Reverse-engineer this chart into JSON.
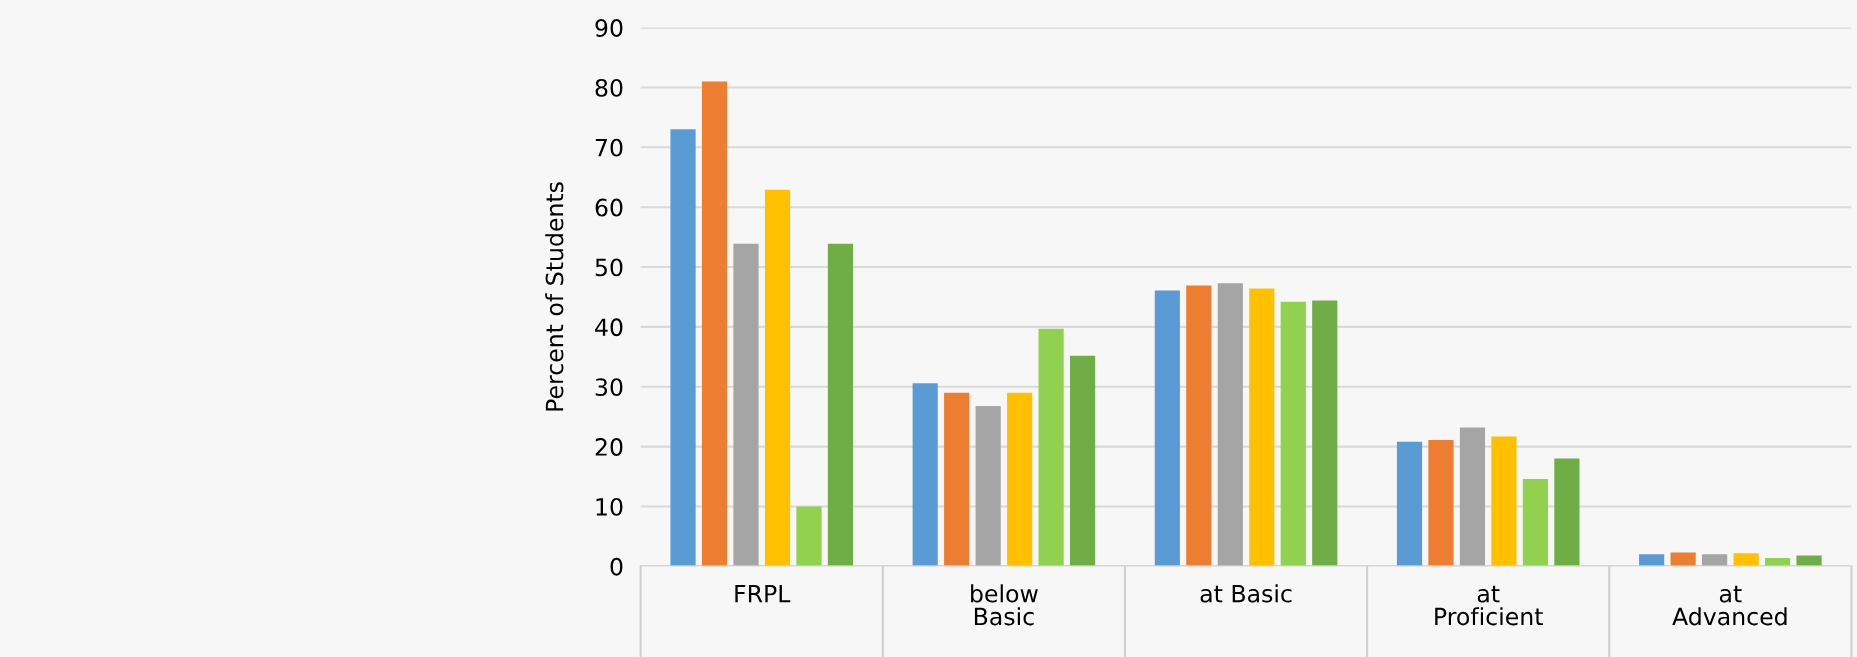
{
  "chart_data": {
    "type": "bar",
    "ylabel": "Percent of Students",
    "categories": [
      "FRPL",
      "below\nBasic",
      "at Basic",
      "at\nProficient",
      "at\nAdvanced"
    ],
    "series": [
      {
        "color": "#5b9bd5",
        "values": [
          73.0,
          30.6,
          46.1,
          20.8,
          2.0
        ]
      },
      {
        "color": "#ed7d31",
        "values": [
          81.0,
          29.0,
          46.9,
          21.1,
          2.3
        ]
      },
      {
        "color": "#a5a5a5",
        "values": [
          53.9,
          26.8,
          47.3,
          23.2,
          2.0
        ]
      },
      {
        "color": "#ffc000",
        "values": [
          62.9,
          29.0,
          46.4,
          21.7,
          2.2
        ]
      },
      {
        "color": "#92d050",
        "values": [
          10.0,
          39.7,
          44.2,
          14.6,
          1.4
        ]
      },
      {
        "color": "#70ad47",
        "values": [
          53.9,
          35.2,
          44.4,
          18.0,
          1.8
        ]
      }
    ],
    "ylim": [
      0,
      90
    ],
    "yticks": [
      0,
      10,
      20,
      30,
      40,
      50,
      60,
      70,
      80,
      90
    ],
    "grid": "y"
  }
}
